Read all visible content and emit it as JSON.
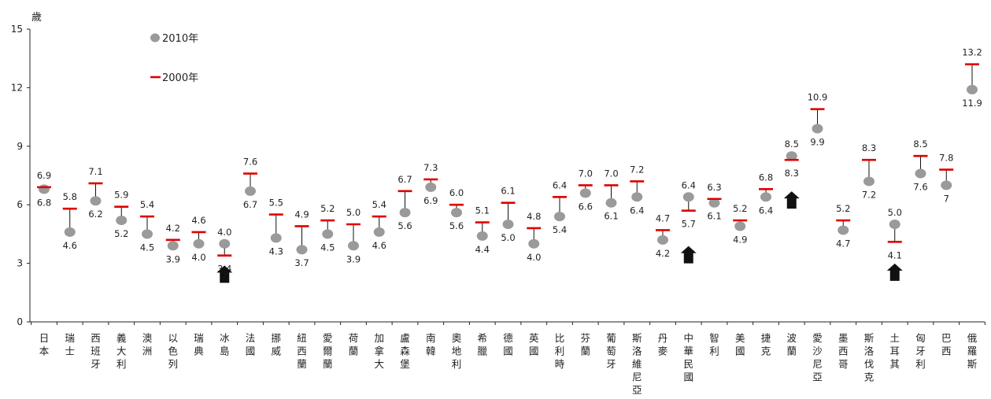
{
  "chart_data": {
    "type": "scatter",
    "ylabel": "歲",
    "ylim": [
      0,
      15
    ],
    "yticks": [
      0,
      3,
      6,
      9,
      12,
      15
    ],
    "legend": {
      "placement": "top-left",
      "items": [
        {
          "label": "2010年",
          "marker": "circle",
          "color": "#9a9a9a"
        },
        {
          "label": "2000年",
          "marker": "dash",
          "color": "#e00000"
        }
      ]
    },
    "categories": [
      "日本",
      "瑞士",
      "西班牙",
      "義大利",
      "澳洲",
      "以色列",
      "瑞典",
      "冰島",
      "法國",
      "挪威",
      "紐西蘭",
      "愛爾蘭",
      "荷蘭",
      "加拿大",
      "盧森堡",
      "南韓",
      "奧地利",
      "希臘",
      "德國",
      "英國",
      "比利時",
      "芬蘭",
      "葡萄牙",
      "斯洛維尼亞",
      "丹麥",
      "中華民國",
      "智利",
      "美國",
      "捷克",
      "波蘭",
      "愛沙尼亞",
      "墨西哥",
      "斯洛伐克",
      "土耳其",
      "匈牙利",
      "巴西",
      "俄羅斯"
    ],
    "series": [
      {
        "name": "2010年",
        "values": [
          6.8,
          4.6,
          6.2,
          5.2,
          4.5,
          3.9,
          4.0,
          4.0,
          6.7,
          4.3,
          3.7,
          4.5,
          3.9,
          4.6,
          5.6,
          6.9,
          5.6,
          4.4,
          5.0,
          4.0,
          5.4,
          6.6,
          6.1,
          6.4,
          4.2,
          6.4,
          6.1,
          4.9,
          6.4,
          8.5,
          9.9,
          4.7,
          7.2,
          5.0,
          7.6,
          7.0,
          11.9
        ],
        "labels": [
          "6.8",
          "4.6",
          "6.2",
          "5.2",
          "4.5",
          "3.9",
          "4.0",
          "4.0",
          "6.7",
          "4.3",
          "3.7",
          "4.5",
          "3.9",
          "4.6",
          "5.6",
          "6.9",
          "5.6",
          "4.4",
          "5.0",
          "4.0",
          "5.4",
          "6.6",
          "6.1",
          "6.4",
          "4.2",
          "6.4",
          "6.1",
          "4.9",
          "6.4",
          "8.5",
          "9.9",
          "4.7",
          "7.2",
          "5.0",
          "7.6",
          "7",
          "11.9"
        ]
      },
      {
        "name": "2000年",
        "values": [
          6.9,
          5.8,
          7.1,
          5.9,
          5.4,
          4.2,
          4.6,
          3.4,
          7.6,
          5.5,
          4.9,
          5.2,
          5.0,
          5.4,
          6.7,
          7.3,
          6.0,
          5.1,
          6.1,
          4.8,
          6.4,
          7.0,
          7.0,
          7.2,
          4.7,
          5.7,
          6.3,
          5.2,
          6.8,
          8.3,
          10.9,
          5.2,
          8.3,
          4.1,
          8.5,
          7.8,
          13.2
        ],
        "labels": [
          "6.9",
          "5.8",
          "7.1",
          "5.9",
          "5.4",
          "4.2",
          "4.6",
          "3.4",
          "7.6",
          "5.5",
          "4.9",
          "5.2",
          "5.0",
          "5.4",
          "6.7",
          "7.3",
          "6.0",
          "5.1",
          "6.1",
          "4.8",
          "6.4",
          "7.0",
          "7.0",
          "7.2",
          "4.7",
          "5.7",
          "6.3",
          "5.2",
          "6.8",
          "8.3",
          "10.9",
          "5.2",
          "8.3",
          "4.1",
          "8.5",
          "7.8",
          "13.2"
        ]
      }
    ],
    "arrows": [
      {
        "category": "冰島",
        "at": 2.0
      },
      {
        "category": "中華民國",
        "at": 3.0
      },
      {
        "category": "波蘭",
        "at": 5.8
      },
      {
        "category": "土耳其",
        "at": 2.1
      }
    ],
    "colors": {
      "dot_2010": "#9a9a9a",
      "dash_2000": "#e00000",
      "connector": "#111111",
      "arrow": "#111111"
    }
  }
}
